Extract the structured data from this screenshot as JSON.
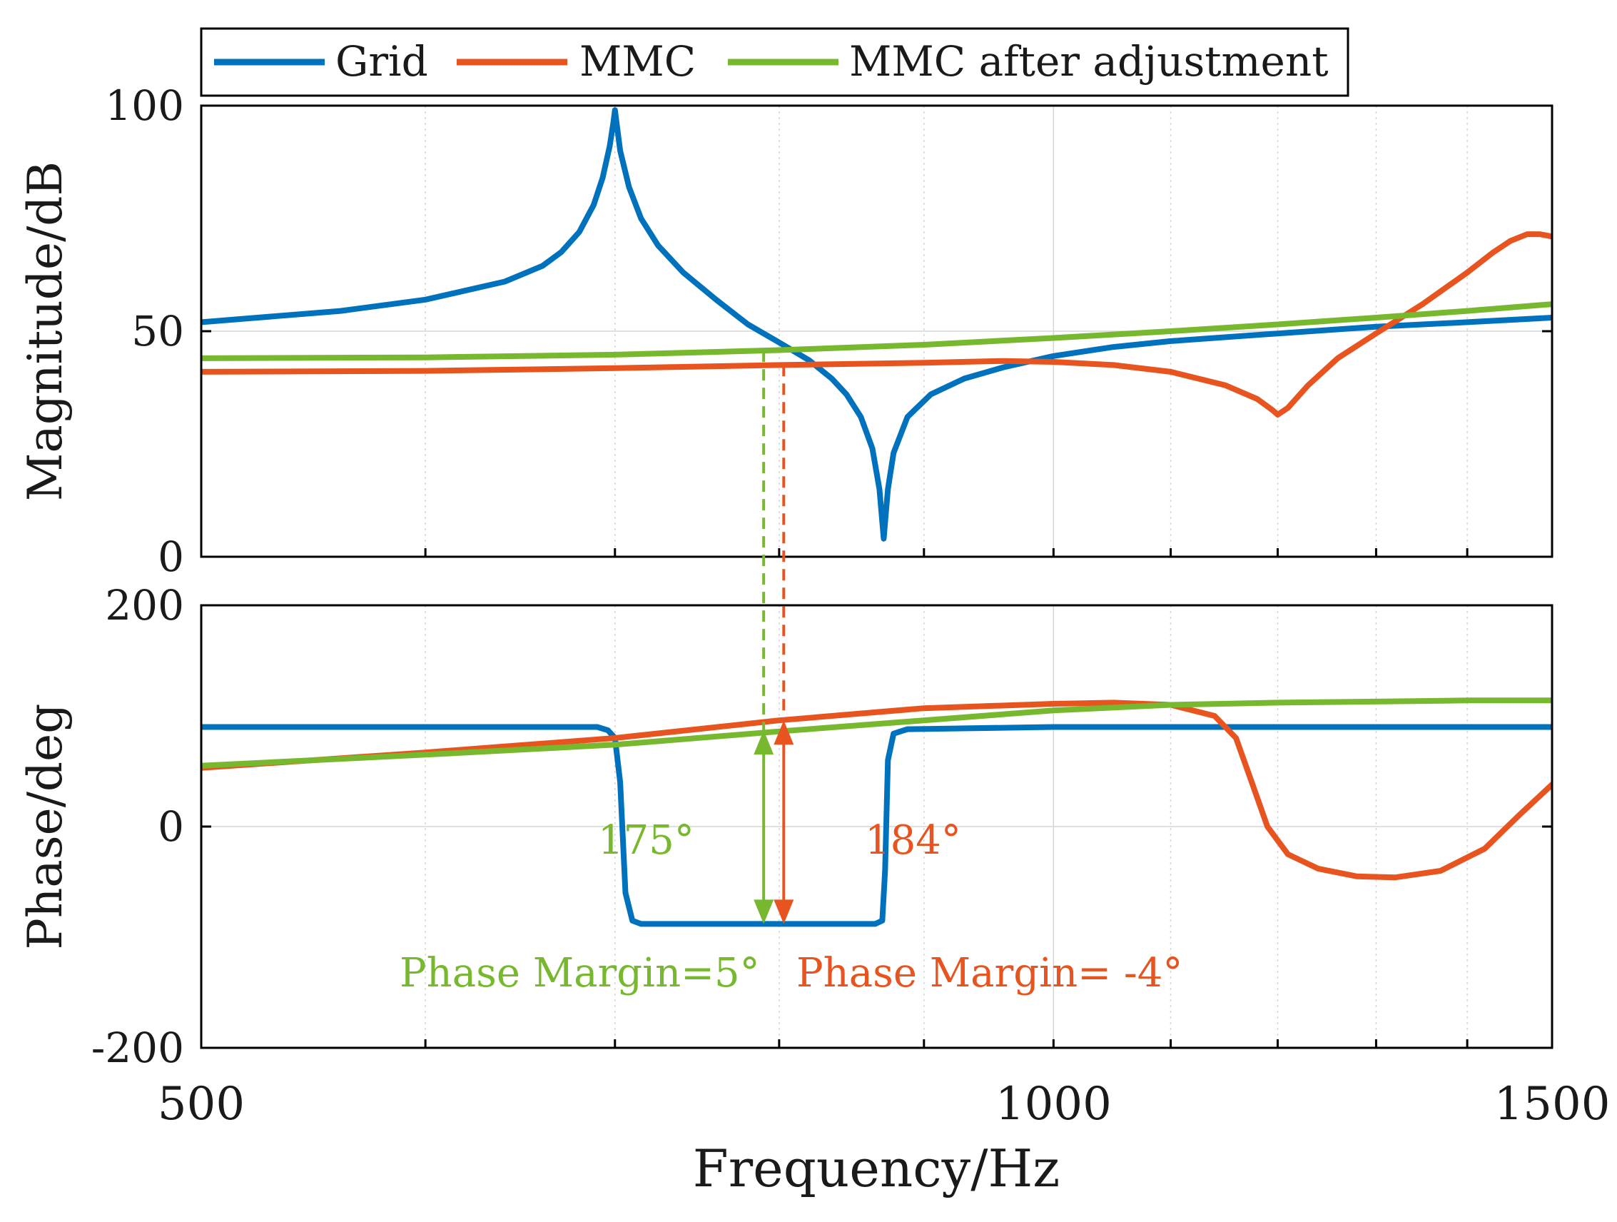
{
  "chart_data": {
    "type": "line",
    "x_axis": {
      "label": "Frequency/Hz",
      "range": [
        500,
        1500
      ],
      "scale": "log",
      "ticks": [
        500,
        1000,
        1500
      ],
      "minor_grid": [
        600,
        700,
        800,
        900,
        1100,
        1200,
        1300,
        1400
      ]
    },
    "legend": {
      "placement": "top",
      "entries": [
        {
          "key": "grid",
          "label": "Grid",
          "color": "#0072BD"
        },
        {
          "key": "mmc",
          "label": "MMC",
          "color": "#E8541F"
        },
        {
          "key": "mmc_adj",
          "label": "MMC after adjustment",
          "color": "#77B82E"
        }
      ]
    },
    "magnitude": {
      "ylabel": "Magnitude/dB",
      "ylim": [
        0,
        100
      ],
      "yticks": [
        0,
        50,
        100
      ],
      "series": {
        "grid": [
          [
            500,
            52
          ],
          [
            560,
            54.5
          ],
          [
            600,
            57
          ],
          [
            640,
            61
          ],
          [
            660,
            64.5
          ],
          [
            670,
            67.5
          ],
          [
            680,
            72
          ],
          [
            688,
            78
          ],
          [
            693,
            84
          ],
          [
            697,
            91
          ],
          [
            699,
            96
          ],
          [
            700,
            99
          ],
          [
            701,
            96
          ],
          [
            703,
            90
          ],
          [
            708,
            82
          ],
          [
            715,
            75
          ],
          [
            725,
            69
          ],
          [
            740,
            63
          ],
          [
            760,
            57
          ],
          [
            780,
            51.5
          ],
          [
            800,
            47.5
          ],
          [
            820,
            43.5
          ],
          [
            835,
            39.5
          ],
          [
            845,
            36
          ],
          [
            855,
            31
          ],
          [
            863,
            24
          ],
          [
            868,
            15
          ],
          [
            871,
            4
          ],
          [
            874,
            15
          ],
          [
            878,
            23
          ],
          [
            888,
            31
          ],
          [
            905,
            36
          ],
          [
            930,
            39.5
          ],
          [
            960,
            42
          ],
          [
            1000,
            44.5
          ],
          [
            1050,
            46.5
          ],
          [
            1100,
            47.8
          ],
          [
            1200,
            49.5
          ],
          [
            1300,
            51
          ],
          [
            1400,
            52
          ],
          [
            1500,
            53
          ]
        ],
        "mmc": [
          [
            500,
            41
          ],
          [
            600,
            41.2
          ],
          [
            700,
            41.8
          ],
          [
            800,
            42.5
          ],
          [
            900,
            43
          ],
          [
            960,
            43.4
          ],
          [
            1000,
            43.2
          ],
          [
            1050,
            42.5
          ],
          [
            1100,
            41
          ],
          [
            1150,
            38
          ],
          [
            1180,
            35
          ],
          [
            1195,
            32.5
          ],
          [
            1200,
            31.5
          ],
          [
            1210,
            33
          ],
          [
            1230,
            38
          ],
          [
            1260,
            44
          ],
          [
            1300,
            49.5
          ],
          [
            1350,
            56
          ],
          [
            1400,
            63
          ],
          [
            1430,
            67.5
          ],
          [
            1450,
            70
          ],
          [
            1470,
            71.5
          ],
          [
            1485,
            71.5
          ],
          [
            1500,
            71
          ]
        ],
        "mmc_adj": [
          [
            500,
            44
          ],
          [
            600,
            44.2
          ],
          [
            700,
            44.8
          ],
          [
            800,
            45.8
          ],
          [
            900,
            47
          ],
          [
            1000,
            48.5
          ],
          [
            1100,
            50
          ],
          [
            1200,
            51.5
          ],
          [
            1300,
            53
          ],
          [
            1400,
            54.5
          ],
          [
            1500,
            56
          ]
        ]
      }
    },
    "phase": {
      "ylabel": "Phase/deg",
      "ylim": [
        -200,
        200
      ],
      "yticks": [
        -200,
        0,
        200
      ],
      "series": {
        "grid": [
          [
            500,
            90
          ],
          [
            690,
            90
          ],
          [
            696,
            87
          ],
          [
            700,
            80
          ],
          [
            703,
            40
          ],
          [
            706,
            -60
          ],
          [
            710,
            -85
          ],
          [
            715,
            -88
          ],
          [
            770,
            -88
          ],
          [
            865,
            -88
          ],
          [
            870,
            -85
          ],
          [
            872,
            -40
          ],
          [
            874,
            60
          ],
          [
            878,
            84
          ],
          [
            888,
            88
          ],
          [
            1000,
            90
          ],
          [
            1500,
            90
          ]
        ],
        "mmc": [
          [
            500,
            53
          ],
          [
            600,
            67
          ],
          [
            700,
            80
          ],
          [
            800,
            96
          ],
          [
            900,
            107
          ],
          [
            1000,
            111
          ],
          [
            1050,
            112
          ],
          [
            1100,
            110
          ],
          [
            1140,
            100
          ],
          [
            1160,
            80
          ],
          [
            1175,
            40
          ],
          [
            1190,
            0
          ],
          [
            1210,
            -25
          ],
          [
            1240,
            -38
          ],
          [
            1280,
            -45
          ],
          [
            1320,
            -46
          ],
          [
            1370,
            -40
          ],
          [
            1420,
            -20
          ],
          [
            1460,
            10
          ],
          [
            1500,
            38
          ]
        ],
        "mmc_adj": [
          [
            500,
            55
          ],
          [
            600,
            65
          ],
          [
            700,
            74
          ],
          [
            800,
            86
          ],
          [
            900,
            96
          ],
          [
            1000,
            105
          ],
          [
            1100,
            110
          ],
          [
            1200,
            112
          ],
          [
            1300,
            113
          ],
          [
            1400,
            114
          ],
          [
            1500,
            114
          ]
        ]
      }
    },
    "annotations": {
      "green_crossing_freq": 790,
      "red_crossing_freq": 803,
      "green_arrow_phase": [
        -88,
        87
      ],
      "red_arrow_phase": [
        -88,
        96
      ],
      "green_angle": "175°",
      "red_angle": "184°",
      "green_margin": "Phase Margin=5°",
      "red_margin": "Phase Margin= -4°"
    }
  }
}
